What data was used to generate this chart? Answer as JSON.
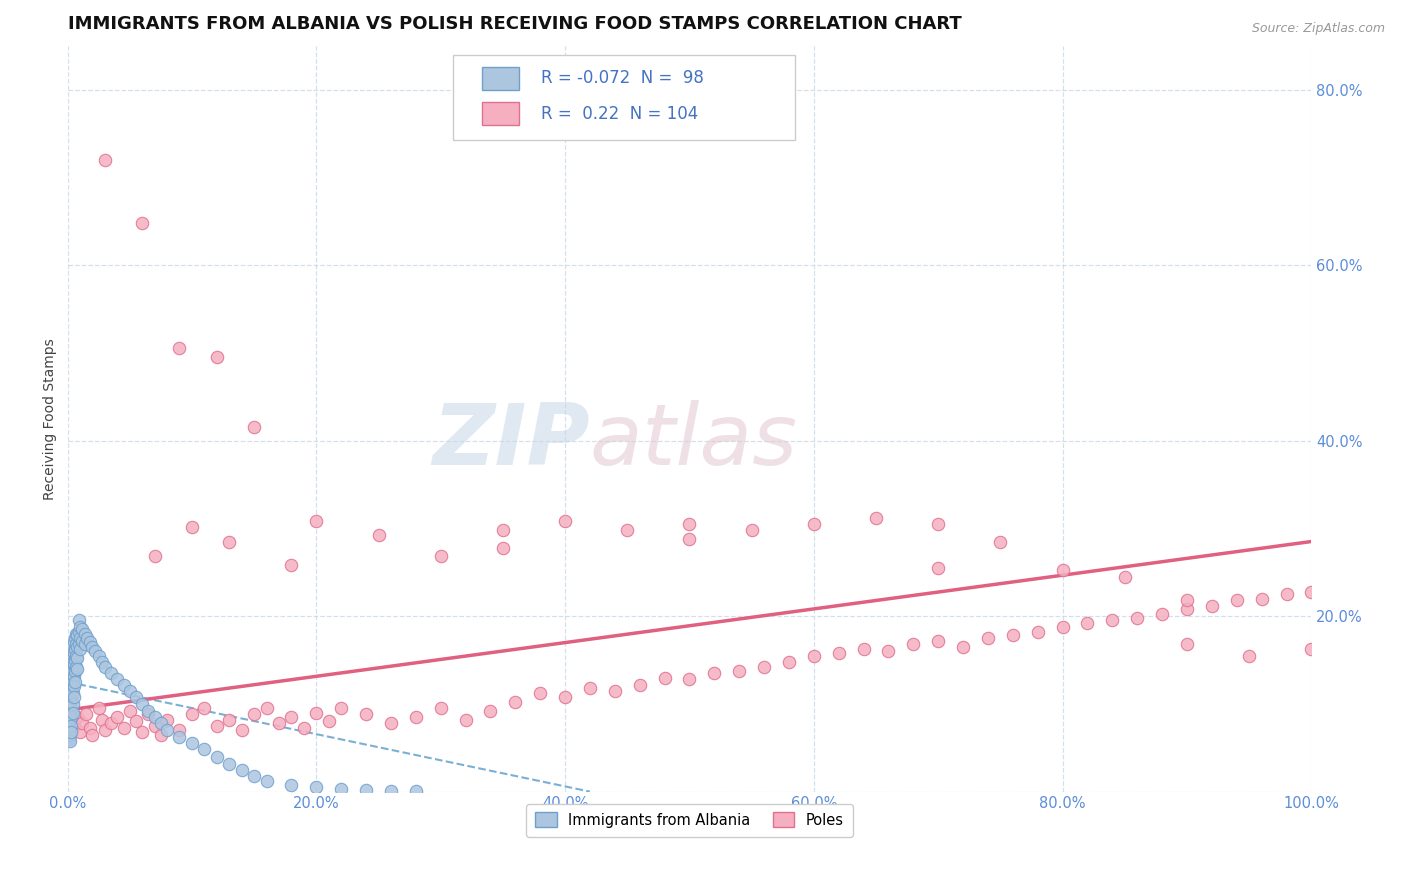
{
  "title": "IMMIGRANTS FROM ALBANIA VS POLISH RECEIVING FOOD STAMPS CORRELATION CHART",
  "source": "Source: ZipAtlas.com",
  "ylabel": "Receiving Food Stamps",
  "xlim": [
    0.0,
    1.0
  ],
  "ylim": [
    0.0,
    0.85
  ],
  "x_ticks": [
    0.0,
    0.2,
    0.4,
    0.6,
    0.8,
    1.0
  ],
  "x_tick_labels": [
    "0.0%",
    "20.0%",
    "40.0%",
    "60.0%",
    "80.0%",
    "100.0%"
  ],
  "y_ticks": [
    0.0,
    0.2,
    0.4,
    0.6,
    0.8
  ],
  "y_tick_labels_left": [
    "",
    "",
    "",
    "",
    ""
  ],
  "y_tick_labels_right": [
    "",
    "20.0%",
    "40.0%",
    "60.0%",
    "80.0%"
  ],
  "albania_color": "#adc6e0",
  "albania_edge": "#6fa0cc",
  "poles_color": "#f5afc0",
  "poles_edge": "#e07090",
  "albania_r": -0.072,
  "albania_n": 98,
  "poles_r": 0.22,
  "poles_n": 104,
  "legend_labels": [
    "Immigrants from Albania",
    "Poles"
  ],
  "title_fontsize": 13,
  "axis_label_fontsize": 10,
  "tick_fontsize": 10.5,
  "tick_color": "#5b8dd9",
  "albania_trend_start_x": 0.0,
  "albania_trend_start_y": 0.125,
  "albania_trend_end_x": 0.42,
  "albania_trend_end_y": 0.0,
  "poles_trend_start_x": 0.0,
  "poles_trend_start_y": 0.093,
  "poles_trend_end_x": 1.0,
  "poles_trend_end_y": 0.285,
  "albania_scatter_x": [
    0.001,
    0.001,
    0.001,
    0.001,
    0.001,
    0.001,
    0.001,
    0.001,
    0.001,
    0.001,
    0.002,
    0.002,
    0.002,
    0.002,
    0.002,
    0.002,
    0.002,
    0.002,
    0.002,
    0.002,
    0.003,
    0.003,
    0.003,
    0.003,
    0.003,
    0.003,
    0.003,
    0.003,
    0.003,
    0.004,
    0.004,
    0.004,
    0.004,
    0.004,
    0.004,
    0.004,
    0.005,
    0.005,
    0.005,
    0.005,
    0.005,
    0.005,
    0.006,
    0.006,
    0.006,
    0.006,
    0.006,
    0.007,
    0.007,
    0.007,
    0.007,
    0.008,
    0.008,
    0.008,
    0.008,
    0.009,
    0.009,
    0.009,
    0.01,
    0.01,
    0.01,
    0.012,
    0.012,
    0.014,
    0.014,
    0.016,
    0.018,
    0.02,
    0.022,
    0.025,
    0.028,
    0.03,
    0.035,
    0.04,
    0.045,
    0.05,
    0.055,
    0.06,
    0.065,
    0.07,
    0.075,
    0.08,
    0.09,
    0.1,
    0.11,
    0.12,
    0.13,
    0.14,
    0.15,
    0.16,
    0.18,
    0.2,
    0.22,
    0.24,
    0.26,
    0.28
  ],
  "albania_scatter_y": [
    0.125,
    0.13,
    0.118,
    0.108,
    0.095,
    0.085,
    0.075,
    0.07,
    0.065,
    0.06,
    0.14,
    0.128,
    0.115,
    0.105,
    0.098,
    0.09,
    0.082,
    0.072,
    0.065,
    0.058,
    0.155,
    0.142,
    0.13,
    0.118,
    0.108,
    0.095,
    0.085,
    0.075,
    0.068,
    0.16,
    0.148,
    0.138,
    0.125,
    0.112,
    0.1,
    0.09,
    0.17,
    0.158,
    0.145,
    0.132,
    0.12,
    0.108,
    0.175,
    0.162,
    0.15,
    0.138,
    0.125,
    0.18,
    0.168,
    0.155,
    0.142,
    0.178,
    0.165,
    0.152,
    0.14,
    0.195,
    0.182,
    0.168,
    0.188,
    0.175,
    0.162,
    0.185,
    0.172,
    0.18,
    0.168,
    0.175,
    0.17,
    0.165,
    0.16,
    0.155,
    0.148,
    0.142,
    0.135,
    0.128,
    0.122,
    0.115,
    0.108,
    0.1,
    0.092,
    0.085,
    0.078,
    0.07,
    0.062,
    0.055,
    0.048,
    0.04,
    0.032,
    0.025,
    0.018,
    0.012,
    0.008,
    0.005,
    0.003,
    0.002,
    0.001,
    0.001
  ],
  "poles_scatter_x": [
    0.005,
    0.008,
    0.01,
    0.012,
    0.015,
    0.018,
    0.02,
    0.025,
    0.028,
    0.03,
    0.035,
    0.04,
    0.045,
    0.05,
    0.055,
    0.06,
    0.065,
    0.07,
    0.075,
    0.08,
    0.09,
    0.1,
    0.11,
    0.12,
    0.13,
    0.14,
    0.15,
    0.16,
    0.17,
    0.18,
    0.19,
    0.2,
    0.21,
    0.22,
    0.24,
    0.26,
    0.28,
    0.3,
    0.32,
    0.34,
    0.36,
    0.38,
    0.4,
    0.42,
    0.44,
    0.46,
    0.48,
    0.5,
    0.52,
    0.54,
    0.56,
    0.58,
    0.6,
    0.62,
    0.64,
    0.66,
    0.68,
    0.7,
    0.72,
    0.74,
    0.76,
    0.78,
    0.8,
    0.82,
    0.84,
    0.86,
    0.88,
    0.9,
    0.92,
    0.94,
    0.96,
    0.98,
    1.0,
    0.03,
    0.06,
    0.09,
    0.12,
    0.15,
    0.2,
    0.25,
    0.3,
    0.35,
    0.4,
    0.45,
    0.5,
    0.55,
    0.6,
    0.65,
    0.7,
    0.75,
    0.8,
    0.85,
    0.9,
    0.95,
    1.0,
    0.07,
    0.1,
    0.13,
    0.18,
    0.35,
    0.5,
    0.7,
    0.9
  ],
  "poles_scatter_y": [
    0.075,
    0.085,
    0.068,
    0.078,
    0.088,
    0.072,
    0.065,
    0.095,
    0.082,
    0.07,
    0.078,
    0.085,
    0.072,
    0.092,
    0.08,
    0.068,
    0.088,
    0.075,
    0.065,
    0.082,
    0.07,
    0.088,
    0.095,
    0.075,
    0.082,
    0.07,
    0.088,
    0.095,
    0.078,
    0.085,
    0.072,
    0.09,
    0.08,
    0.095,
    0.088,
    0.078,
    0.085,
    0.095,
    0.082,
    0.092,
    0.102,
    0.112,
    0.108,
    0.118,
    0.115,
    0.122,
    0.13,
    0.128,
    0.135,
    0.138,
    0.142,
    0.148,
    0.155,
    0.158,
    0.162,
    0.16,
    0.168,
    0.172,
    0.165,
    0.175,
    0.178,
    0.182,
    0.188,
    0.192,
    0.195,
    0.198,
    0.202,
    0.208,
    0.212,
    0.218,
    0.22,
    0.225,
    0.228,
    0.72,
    0.648,
    0.505,
    0.495,
    0.415,
    0.308,
    0.292,
    0.268,
    0.278,
    0.308,
    0.298,
    0.288,
    0.298,
    0.305,
    0.312,
    0.305,
    0.285,
    0.252,
    0.245,
    0.218,
    0.155,
    0.162,
    0.268,
    0.302,
    0.285,
    0.258,
    0.298,
    0.305,
    0.255,
    0.168
  ]
}
